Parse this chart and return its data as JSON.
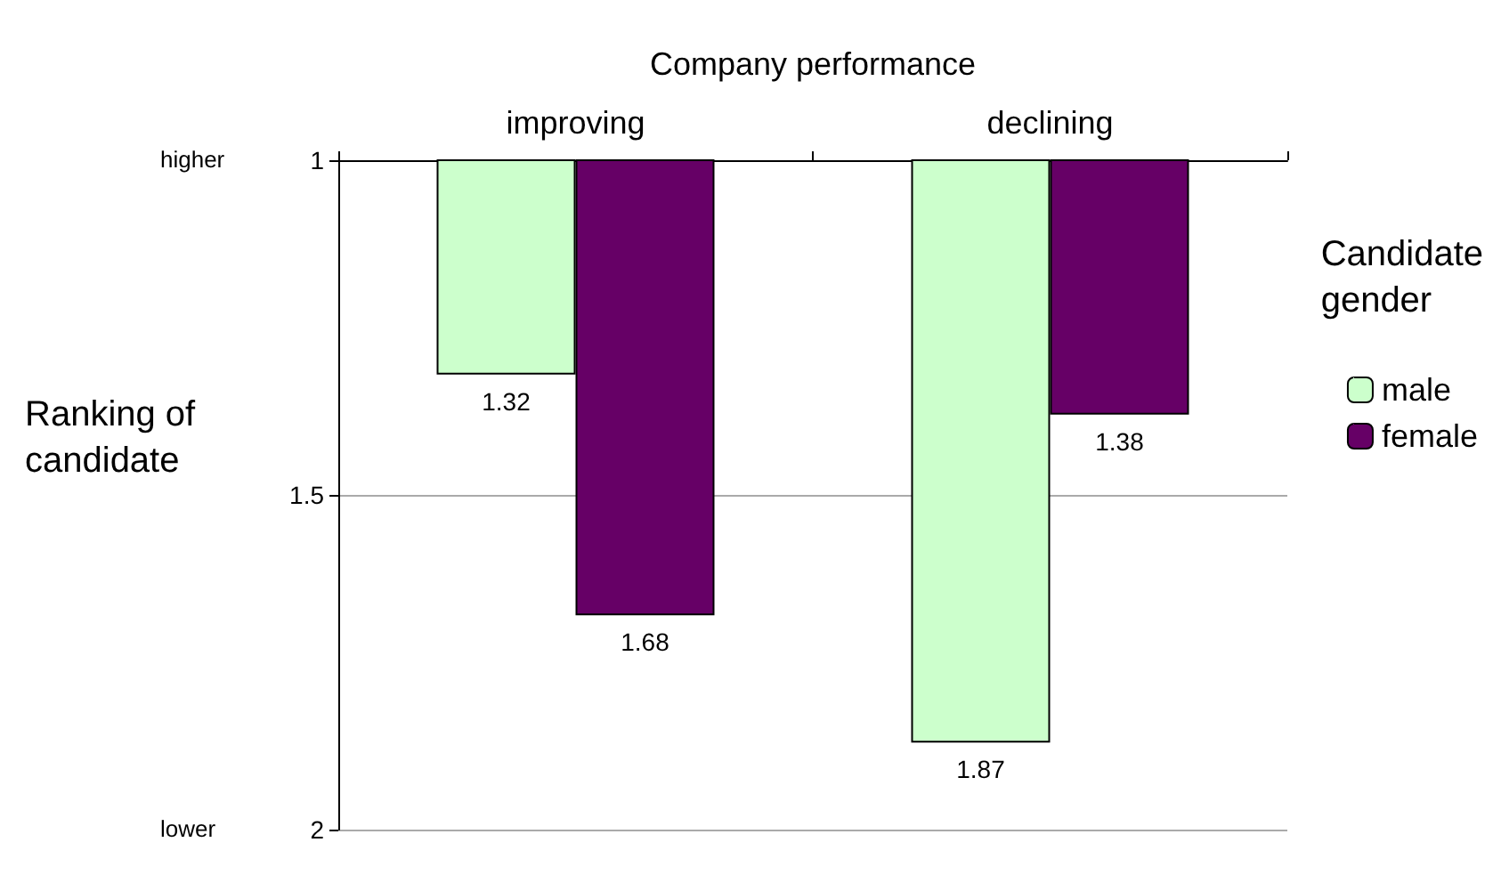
{
  "chart_data": {
    "type": "bar",
    "xlabel": "Company performance",
    "ylabel": "Ranking of candidate",
    "legend_title": "Candidate gender",
    "categories": [
      "improving",
      "declining"
    ],
    "series": [
      {
        "name": "male",
        "color": "#ccffcc",
        "values": [
          1.32,
          1.87
        ]
      },
      {
        "name": "female",
        "color": "#660066",
        "values": [
          1.68,
          1.38
        ]
      }
    ],
    "ylim": [
      2,
      1
    ],
    "yticks": [
      1,
      1.5,
      2
    ],
    "grid": "y",
    "legend": "right",
    "data_labels": true,
    "annotations": [
      "higher",
      "lower"
    ]
  }
}
